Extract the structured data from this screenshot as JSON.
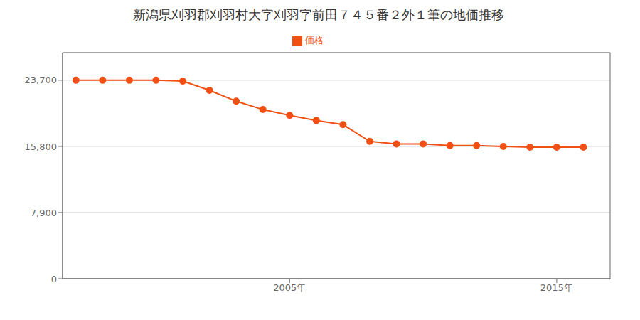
{
  "chart_data": {
    "type": "line",
    "title": "新潟県刈羽郡刈羽村大字刈羽字前田７４５番２外１筆の地価推移",
    "x": [
      1997,
      1998,
      1999,
      2000,
      2001,
      2002,
      2003,
      2004,
      2005,
      2006,
      2007,
      2008,
      2009,
      2010,
      2011,
      2012,
      2013,
      2014,
      2015,
      2016
    ],
    "series": [
      {
        "name": "価格",
        "color": "#f05014",
        "marker": "circle",
        "values": [
          23700,
          23700,
          23700,
          23700,
          23600,
          22500,
          21200,
          20200,
          19500,
          18900,
          18400,
          16400,
          16100,
          16100,
          15900,
          15900,
          15800,
          15700,
          15700,
          15700
        ]
      }
    ],
    "xlim": [
      1996.5,
      2017
    ],
    "xticks": [
      {
        "value": 2005,
        "label": "2005年"
      },
      {
        "value": 2015,
        "label": "2015年"
      }
    ],
    "ylim": [
      0,
      27000
    ],
    "yticks": [
      0,
      {
        "value": 7900,
        "label": "7,900"
      },
      {
        "value": 15800,
        "label": "15,800"
      },
      {
        "value": 23700,
        "label": "23,700"
      }
    ],
    "grid": "y",
    "legend": "top"
  }
}
